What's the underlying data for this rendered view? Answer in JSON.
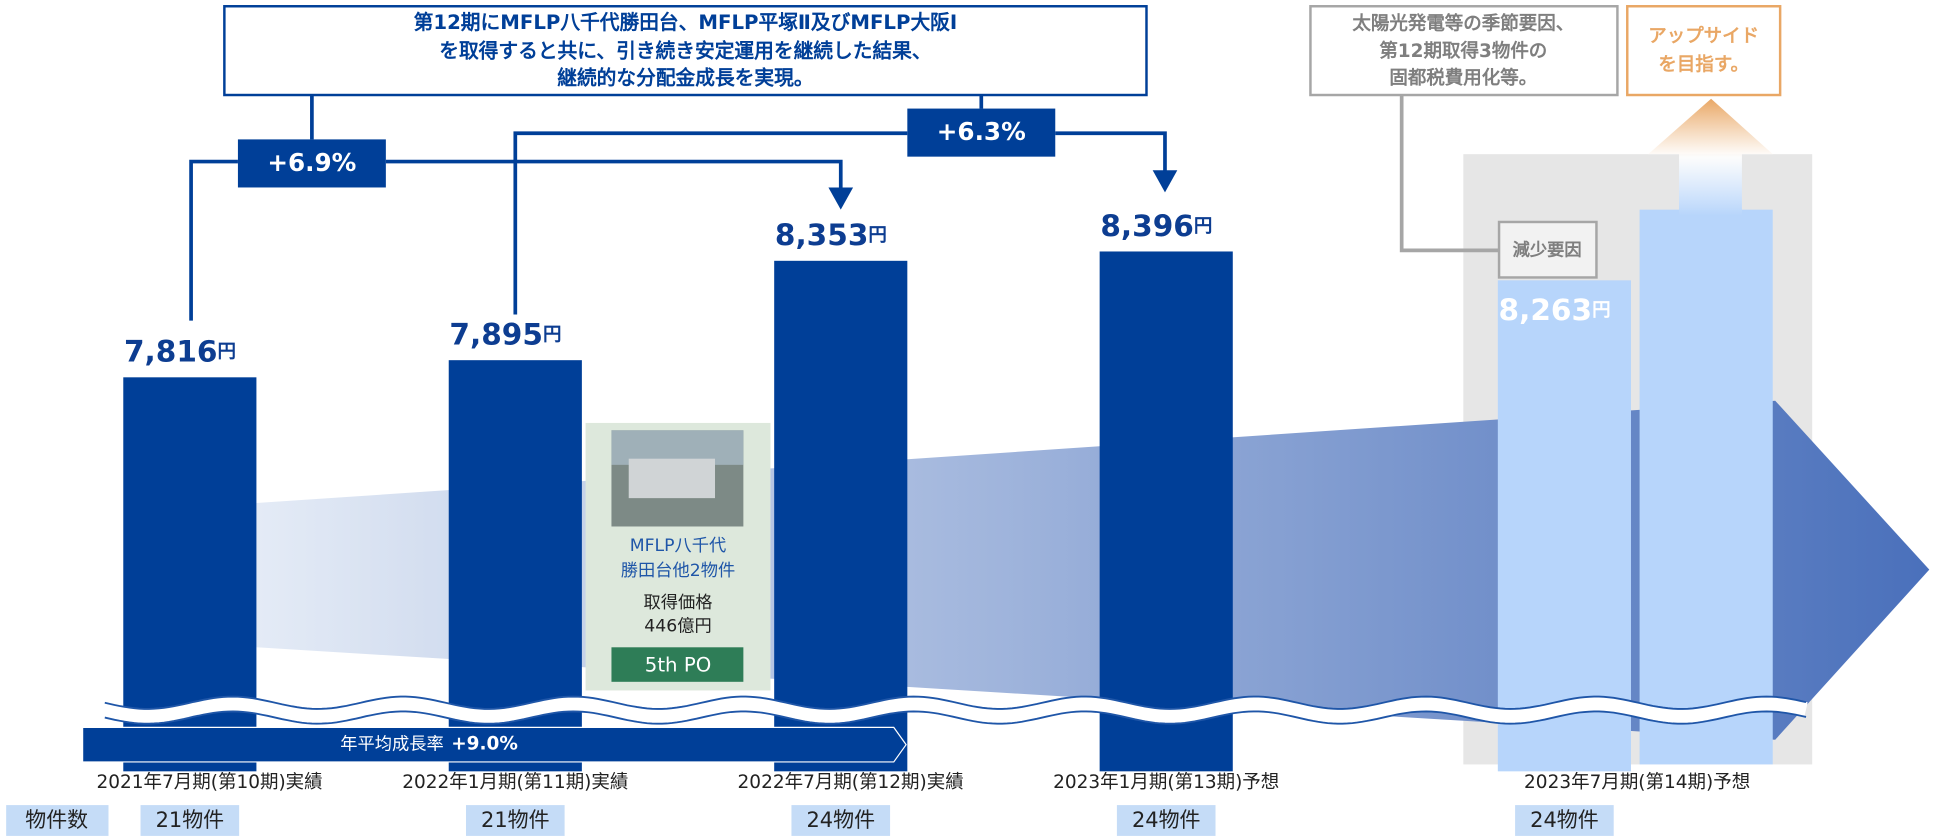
{
  "chart_data": {
    "type": "bar",
    "categories": [
      "2021年7月期(第10期)実績",
      "2022年1月期(第11期)実績",
      "2022年7月期(第12期)実績",
      "2023年1月期(第13期)予想",
      "2023年7月期(第14期)予想"
    ],
    "values": [
      7816,
      7895,
      8353,
      8396,
      8263
    ],
    "value_labels": [
      "7,816",
      "7,895",
      "8,353",
      "8,396",
      "8,263"
    ],
    "unit": "円",
    "colors": [
      "#003f98",
      "#003f98",
      "#003f98",
      "#003f98",
      "#b7d5fb"
    ],
    "ylim": [
      6000,
      8600
    ],
    "property_count_label": "物件数",
    "property_counts": [
      "21物件",
      "21物件",
      "24物件",
      "24物件",
      "24物件"
    ],
    "headline": [
      "第12期にMFLP八千代勝田台、MFLP平塚Ⅱ及びMFLP大阪Ⅰ",
      "を取得すると共に、引き続き安定運用を継続した結果、",
      "継続的な分配金成長を実現。"
    ],
    "growth_rates": [
      "+6.9%",
      "+6.3%"
    ],
    "acquisition": {
      "name": [
        "MFLP八千代",
        "勝田台他2物件"
      ],
      "price": [
        "取得価格",
        "446億円"
      ],
      "offering": "5th PO"
    },
    "cagr": {
      "label": "年平均成長率",
      "value": "+9.0%"
    },
    "decline_note": [
      "太陽光発電等の季節要因、",
      "第12期取得3物件の",
      "固都税費用化等。"
    ],
    "decline_label": "減少要因",
    "upside": [
      "アップサイド",
      "を目指す。"
    ]
  }
}
